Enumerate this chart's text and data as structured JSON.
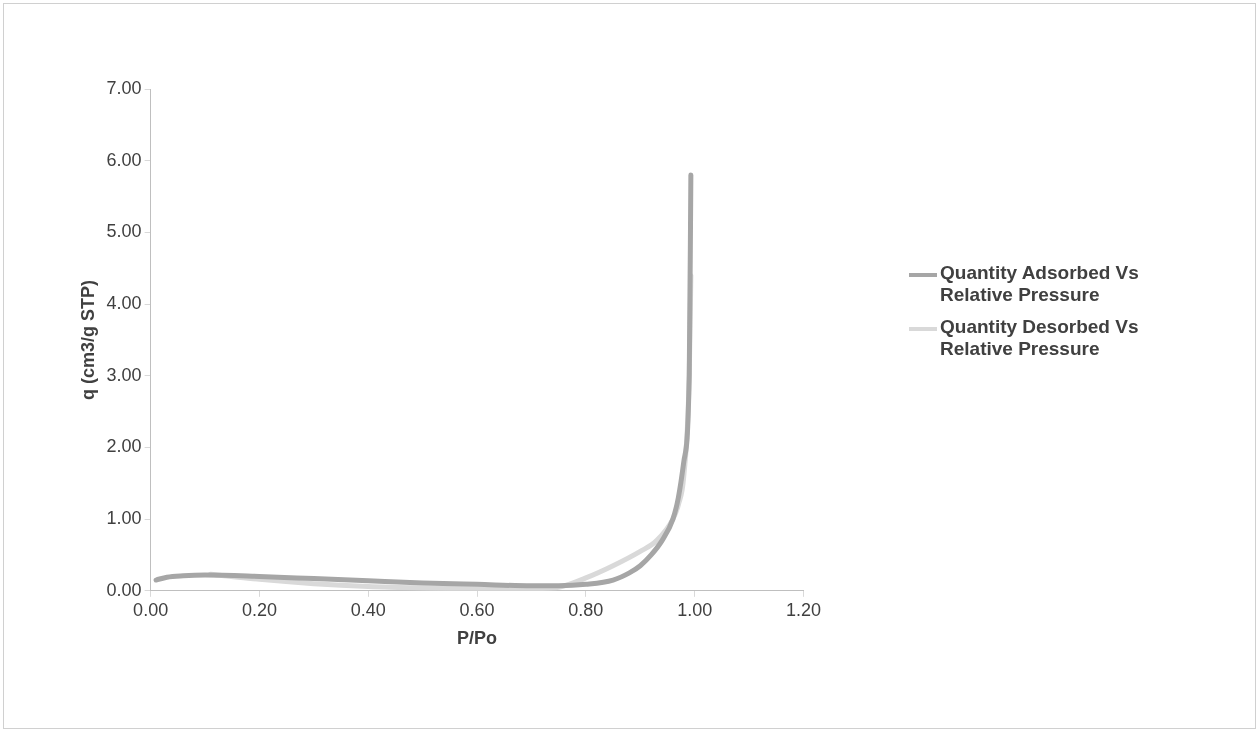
{
  "chart_data": {
    "type": "line",
    "xlabel": "P/Po",
    "ylabel": "q (cm3/g STP)",
    "xlim": [
      0,
      1.2
    ],
    "ylim": [
      0,
      7
    ],
    "xticks": [
      {
        "value": 0,
        "label": "0.00"
      },
      {
        "value": 0.2,
        "label": "0.20"
      },
      {
        "value": 0.4,
        "label": "0.40"
      },
      {
        "value": 0.6,
        "label": "0.60"
      },
      {
        "value": 0.8,
        "label": "0.80"
      },
      {
        "value": 1,
        "label": "1.00"
      },
      {
        "value": 1.2,
        "label": "1.20"
      }
    ],
    "yticks": [
      {
        "value": 0,
        "label": "0.00"
      },
      {
        "value": 1,
        "label": "1.00"
      },
      {
        "value": 2,
        "label": "2.00"
      },
      {
        "value": 3,
        "label": "3.00"
      },
      {
        "value": 4,
        "label": "4.00"
      },
      {
        "value": 5,
        "label": "5.00"
      },
      {
        "value": 6,
        "label": "6.00"
      },
      {
        "value": 7,
        "label": "7.00"
      }
    ],
    "grid": false,
    "legend": "right",
    "marker": "none",
    "line_style": "solid",
    "series": [
      {
        "name": "Quantity Adsorbed Vs Relative Pressure",
        "color": "#a6a6a6",
        "x": [
          0.01,
          0.03,
          0.06,
          0.1,
          0.2,
          0.3,
          0.4,
          0.5,
          0.6,
          0.7,
          0.75,
          0.8,
          0.85,
          0.88,
          0.9,
          0.92,
          0.94,
          0.96,
          0.97,
          0.98,
          0.99,
          0.993
        ],
        "values": [
          0.15,
          0.19,
          0.21,
          0.22,
          0.2,
          0.17,
          0.14,
          0.11,
          0.09,
          0.07,
          0.07,
          0.09,
          0.15,
          0.25,
          0.35,
          0.5,
          0.7,
          1.0,
          1.3,
          1.8,
          3.0,
          5.8
        ]
      },
      {
        "name": "Quantity Desorbed Vs Relative Pressure",
        "color": "#d9d9d9",
        "x": [
          0.993,
          0.99,
          0.98,
          0.97,
          0.96,
          0.93,
          0.9,
          0.85,
          0.8,
          0.75,
          0.7,
          0.6,
          0.5,
          0.4,
          0.3,
          0.2,
          0.11
        ],
        "values": [
          4.4,
          3.0,
          1.6,
          1.2,
          1.0,
          0.7,
          0.55,
          0.35,
          0.18,
          0.05,
          0.03,
          0.03,
          0.04,
          0.06,
          0.1,
          0.16,
          0.23
        ]
      }
    ]
  }
}
